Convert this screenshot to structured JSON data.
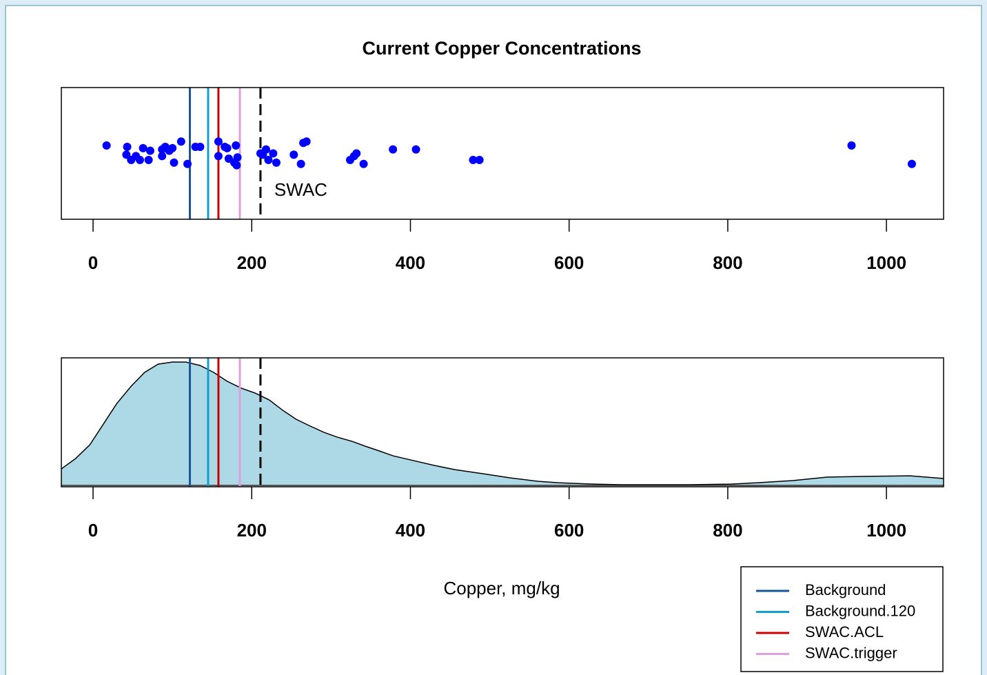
{
  "chart_data": [
    {
      "type": "scatter",
      "title": "Current Copper Concentrations",
      "x": [
        17,
        43,
        42,
        48,
        54,
        59,
        63,
        70,
        72,
        87,
        87,
        91,
        96,
        100,
        102,
        111,
        119,
        129,
        135,
        158,
        158,
        166,
        169,
        171,
        178,
        180,
        182,
        181,
        211,
        214,
        218,
        221,
        227,
        231,
        253,
        262,
        265,
        269,
        324,
        329,
        332,
        341,
        378,
        407,
        479,
        487,
        956,
        1032
      ],
      "values": [
        0.56,
        0.55,
        0.49,
        0.45,
        0.48,
        0.45,
        0.54,
        0.45,
        0.52,
        0.53,
        0.48,
        0.55,
        0.52,
        0.54,
        0.43,
        0.59,
        0.42,
        0.55,
        0.55,
        0.59,
        0.48,
        0.55,
        0.54,
        0.46,
        0.43,
        0.56,
        0.47,
        0.41,
        0.5,
        0.49,
        0.53,
        0.45,
        0.5,
        0.43,
        0.49,
        0.42,
        0.58,
        0.59,
        0.45,
        0.48,
        0.5,
        0.42,
        0.53,
        0.53,
        0.45,
        0.45,
        0.56,
        0.42
      ],
      "color": "#0000ff",
      "xlim": [
        -40,
        1072
      ],
      "ylim": [
        0,
        1
      ],
      "xticks": [
        0,
        200,
        400,
        600,
        800,
        1000
      ],
      "vlines": [
        {
          "name": "Background",
          "value": 122,
          "color": "#1a5496"
        },
        {
          "name": "Background.120",
          "value": 145,
          "color": "#119fce"
        },
        {
          "name": "SWAC.ACL",
          "value": 158,
          "color": "#cc0000"
        },
        {
          "name": "SWAC.trigger",
          "value": 185,
          "color": "#dda0dd"
        }
      ],
      "threshold": {
        "label": "SWAC",
        "value": 211,
        "color": "#000000"
      }
    },
    {
      "type": "area",
      "xlabel": "Copper, mg/kg",
      "x": [
        -40,
        -22,
        -4,
        13,
        30,
        48,
        65,
        82,
        100,
        117,
        135,
        152,
        169,
        187,
        204,
        222,
        239,
        256,
        274,
        291,
        308,
        326,
        343,
        361,
        378,
        404,
        430,
        456,
        491,
        526,
        560,
        586,
        630,
        665,
        752,
        804,
        838,
        882,
        925,
        969,
        1030,
        1072
      ],
      "values": [
        0.134,
        0.218,
        0.33,
        0.497,
        0.665,
        0.804,
        0.916,
        0.983,
        1.0,
        1.0,
        0.972,
        0.916,
        0.844,
        0.788,
        0.749,
        0.693,
        0.609,
        0.536,
        0.48,
        0.43,
        0.391,
        0.358,
        0.318,
        0.279,
        0.24,
        0.201,
        0.162,
        0.128,
        0.095,
        0.061,
        0.034,
        0.022,
        0.011,
        0.006,
        0.006,
        0.011,
        0.022,
        0.039,
        0.067,
        0.073,
        0.078,
        0.056
      ],
      "color": "#add8e6",
      "xlim": [
        -40,
        1072
      ],
      "ylim": [
        -0.011,
        1.034
      ],
      "xticks": [
        0,
        200,
        400,
        600,
        800,
        1000
      ],
      "legend": "bottom-right"
    }
  ]
}
